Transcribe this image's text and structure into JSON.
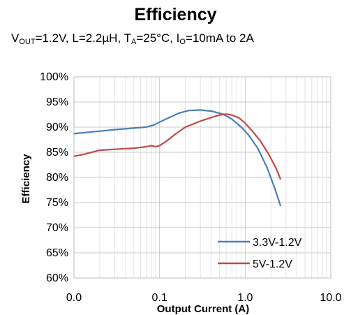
{
  "chart_data": {
    "type": "line",
    "title": "Efficiency",
    "subtitle": {
      "parts": [
        {
          "text": "V"
        },
        {
          "sub": "OUT"
        },
        {
          "text": "=1.2V, L=2.2µH, T"
        },
        {
          "sub": "A"
        },
        {
          "text": "=25°C, I"
        },
        {
          "sub": "O"
        },
        {
          "text": "=10mA to 2A"
        }
      ]
    },
    "xlabel": "Output Current (A)",
    "ylabel": "Efficiency",
    "x_scale": "log",
    "xlim": [
      0.01,
      10
    ],
    "x_tick_labels": [
      "0.0",
      "0.1",
      "1.0",
      "10.0"
    ],
    "ylim": [
      60,
      100
    ],
    "y_ticks": [
      60,
      65,
      70,
      75,
      80,
      85,
      90,
      95,
      100
    ],
    "y_tick_labels": [
      "60%",
      "65%",
      "70%",
      "75%",
      "80%",
      "85%",
      "90%",
      "95%",
      "100%"
    ],
    "grid": true,
    "legend_position": "bottom-right",
    "series": [
      {
        "name": "3.3V-1.2V",
        "color": "#4a7ebb",
        "points": [
          [
            0.01,
            88.7
          ],
          [
            0.015,
            89.0
          ],
          [
            0.02,
            89.2
          ],
          [
            0.03,
            89.5
          ],
          [
            0.05,
            89.8
          ],
          [
            0.07,
            90.0
          ],
          [
            0.085,
            90.4
          ],
          [
            0.1,
            91.0
          ],
          [
            0.13,
            91.9
          ],
          [
            0.17,
            92.8
          ],
          [
            0.22,
            93.3
          ],
          [
            0.3,
            93.4
          ],
          [
            0.4,
            93.2
          ],
          [
            0.55,
            92.6
          ],
          [
            0.7,
            91.6
          ],
          [
            0.9,
            90.0
          ],
          [
            1.1,
            88.4
          ],
          [
            1.4,
            85.8
          ],
          [
            1.8,
            82.0
          ],
          [
            2.2,
            78.0
          ],
          [
            2.6,
            74.3
          ]
        ]
      },
      {
        "name": "5V-1.2V",
        "color": "#be4b48",
        "points": [
          [
            0.01,
            84.2
          ],
          [
            0.013,
            84.6
          ],
          [
            0.017,
            85.1
          ],
          [
            0.02,
            85.4
          ],
          [
            0.03,
            85.6
          ],
          [
            0.05,
            85.8
          ],
          [
            0.07,
            86.1
          ],
          [
            0.08,
            86.3
          ],
          [
            0.09,
            86.1
          ],
          [
            0.1,
            86.3
          ],
          [
            0.12,
            87.2
          ],
          [
            0.15,
            88.5
          ],
          [
            0.2,
            90.0
          ],
          [
            0.3,
            91.2
          ],
          [
            0.4,
            91.9
          ],
          [
            0.5,
            92.4
          ],
          [
            0.6,
            92.6
          ],
          [
            0.7,
            92.4
          ],
          [
            0.85,
            91.8
          ],
          [
            1.0,
            90.8
          ],
          [
            1.2,
            89.3
          ],
          [
            1.5,
            87.3
          ],
          [
            1.9,
            84.5
          ],
          [
            2.3,
            81.8
          ],
          [
            2.6,
            79.6
          ]
        ]
      }
    ]
  }
}
